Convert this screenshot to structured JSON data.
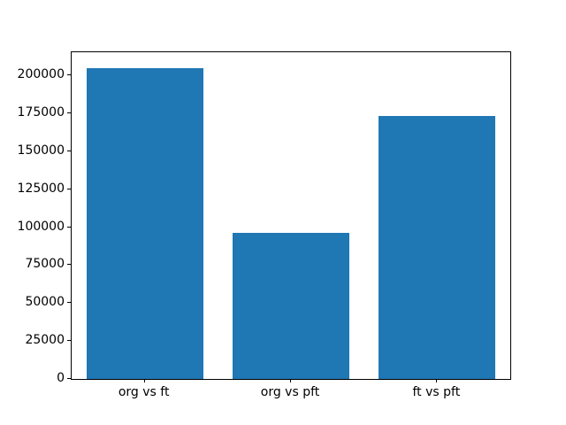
{
  "chart_data": {
    "type": "bar",
    "title": "",
    "xlabel": "",
    "ylabel": "",
    "categories": [
      "org vs ft",
      "org vs pft",
      "ft vs pft"
    ],
    "values": [
      205000,
      96000,
      173000
    ],
    "yticks": [
      0,
      25000,
      50000,
      75000,
      100000,
      125000,
      150000,
      175000,
      200000
    ],
    "ytick_labels": [
      "0",
      "25000",
      "50000",
      "75000",
      "100000",
      "125000",
      "150000",
      "175000",
      "200000"
    ],
    "ylim": [
      0,
      215250
    ],
    "bar_width_fraction": 0.8,
    "bar_color": "#1f77b4",
    "grid": false,
    "legend": null
  },
  "figure": {
    "background_color": "#ffffff",
    "spine_color": "#000000",
    "tick_color": "#000000",
    "label_color": "#000000"
  }
}
